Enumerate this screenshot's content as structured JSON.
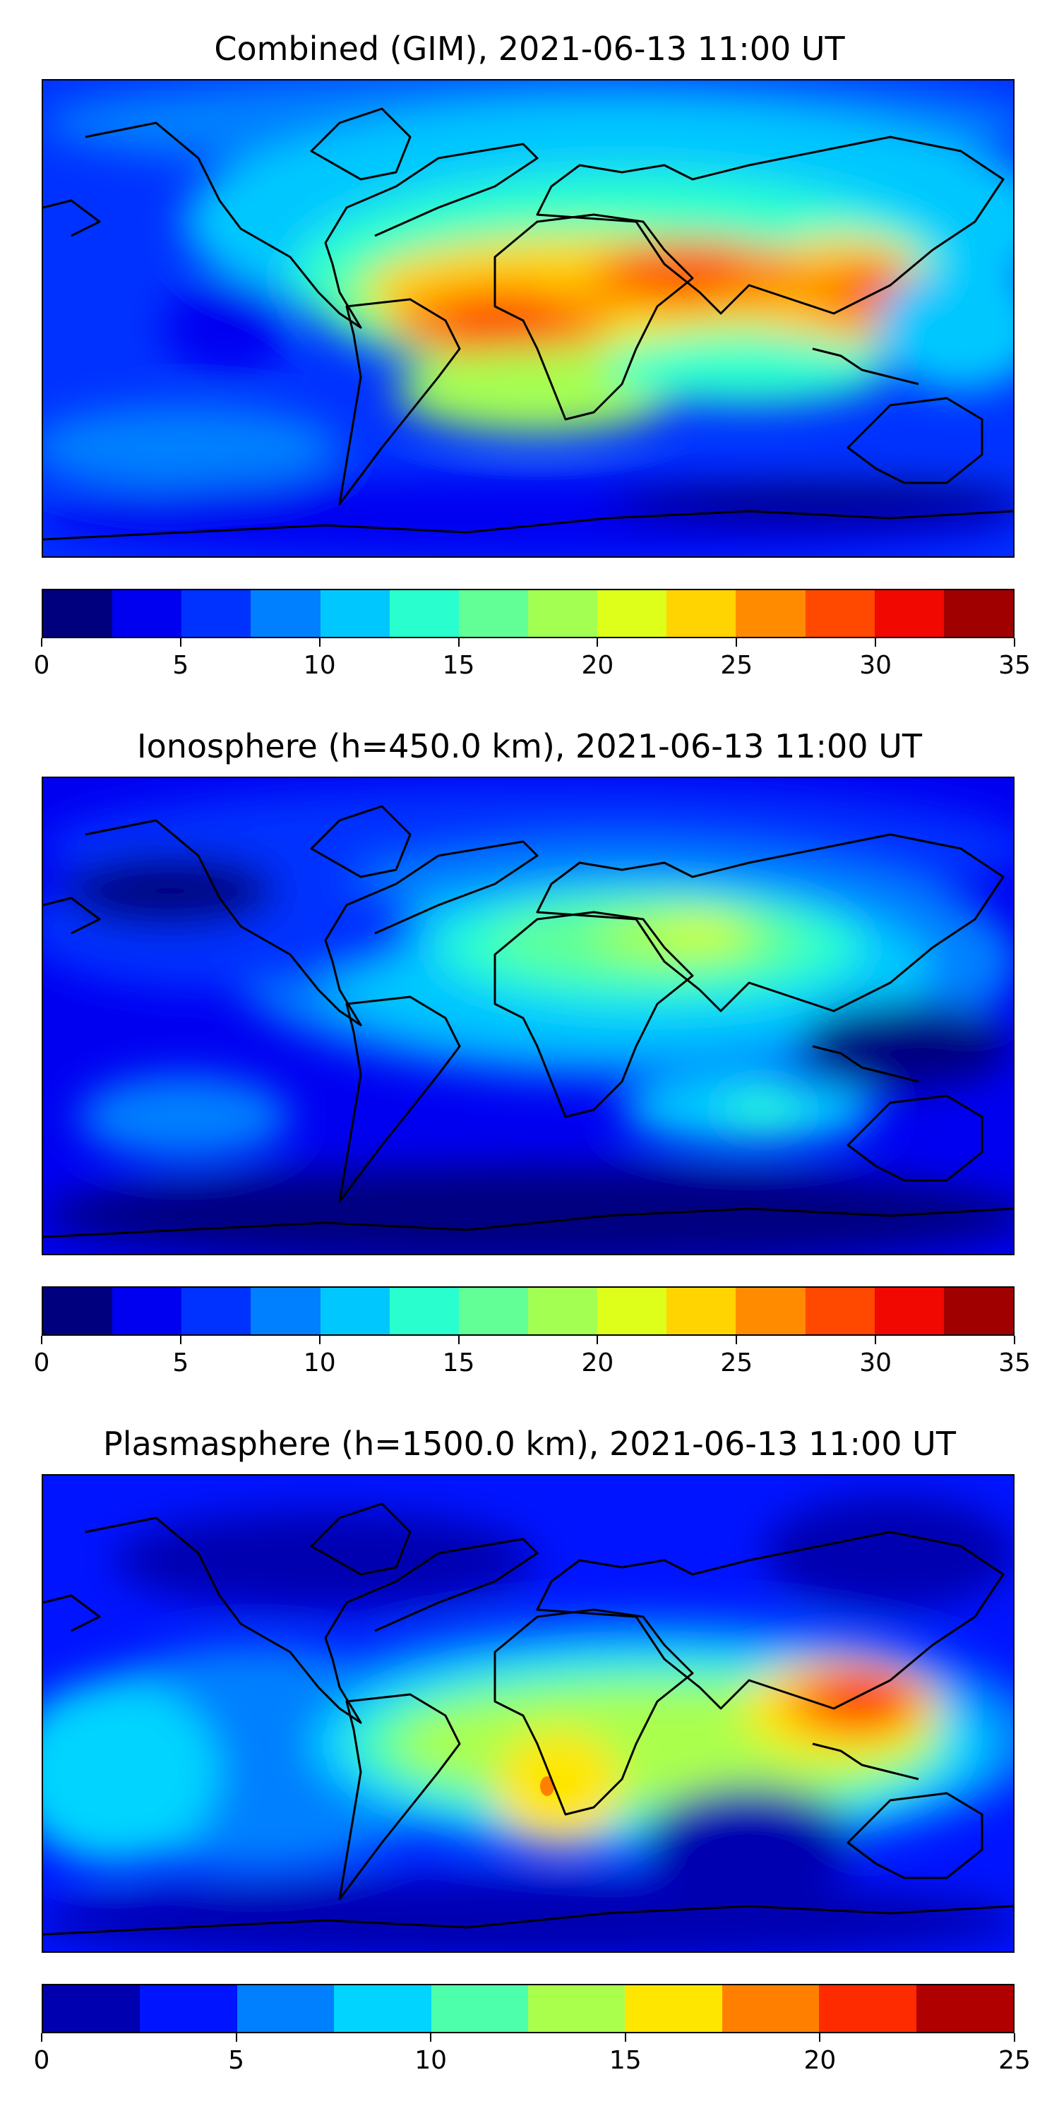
{
  "panels": [
    {
      "title": "Combined (GIM), 2021-06-13 11:00 UT",
      "colorbar": {
        "ticks": [
          "0",
          "5",
          "10",
          "15",
          "20",
          "25",
          "30",
          "35"
        ],
        "colors": [
          "#00007f",
          "#0000f1",
          "#0032ff",
          "#0080ff",
          "#00c8ff",
          "#29ffce",
          "#61ff96",
          "#a4ff53",
          "#ddff1a",
          "#ffd400",
          "#ff8c00",
          "#ff4800",
          "#f10800",
          "#a00000"
        ]
      }
    },
    {
      "title": "Ionosphere  (h=450.0 km), 2021-06-13 11:00 UT",
      "colorbar": {
        "ticks": [
          "0",
          "5",
          "10",
          "15",
          "20",
          "25",
          "30",
          "35"
        ],
        "colors": [
          "#00007f",
          "#0000f1",
          "#0032ff",
          "#0080ff",
          "#00c8ff",
          "#29ffce",
          "#61ff96",
          "#a4ff53",
          "#ddff1a",
          "#ffd400",
          "#ff8c00",
          "#ff4800",
          "#f10800",
          "#a00000"
        ]
      }
    },
    {
      "title": "Plasmasphere (h=1500.0 km), 2021-06-13 11:00 UT",
      "colorbar": {
        "ticks": [
          "0",
          "5",
          "10",
          "15",
          "20",
          "25"
        ],
        "colors": [
          "#0000b0",
          "#0014ff",
          "#0080ff",
          "#00d4ff",
          "#4dffaa",
          "#aaff4d",
          "#ffe600",
          "#ff8000",
          "#ff2b00",
          "#b00000"
        ]
      }
    }
  ]
}
